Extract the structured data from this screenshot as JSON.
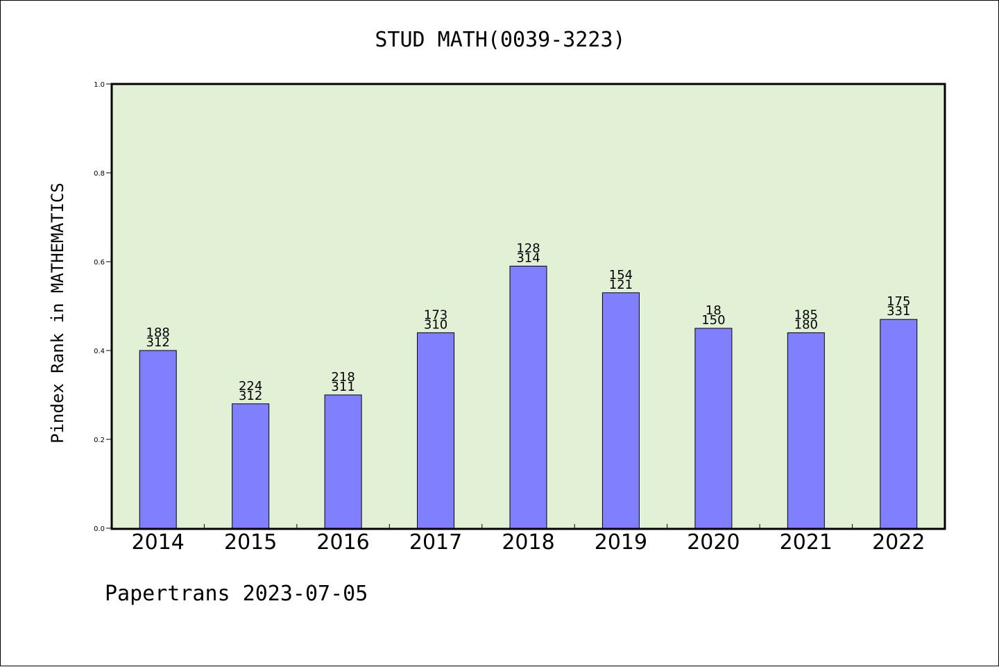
{
  "chart_data": {
    "type": "bar",
    "title": "STUD MATH(0039-3223)",
    "ylabel": "Pindex Rank in MATHEMATICS",
    "xlabel": "",
    "ylim": [
      0,
      1.0
    ],
    "yticks": [
      "0.0",
      "0.2",
      "0.4",
      "0.6",
      "0.8",
      "1.0"
    ],
    "categories": [
      "2014",
      "2015",
      "2016",
      "2017",
      "2018",
      "2019",
      "2020",
      "2021",
      "2022"
    ],
    "values": [
      0.4,
      0.28,
      0.3,
      0.44,
      0.59,
      0.53,
      0.45,
      0.44,
      0.47
    ],
    "labels_top": [
      "188",
      "224",
      "218",
      "173",
      "128",
      "154",
      "18",
      "185",
      "175"
    ],
    "labels_bottom": [
      "312",
      "312",
      "311",
      "310",
      "314",
      "121",
      "150",
      "180",
      "331"
    ],
    "colors": {
      "bar": "#8080ff",
      "plot_bg": "#e2f0d6",
      "axis": "#000000"
    },
    "grid": false,
    "legend": "none"
  },
  "footer": "Papertrans 2023-07-05"
}
